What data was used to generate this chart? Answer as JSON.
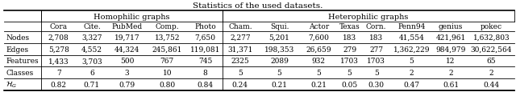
{
  "title": "Statistics of the used datasets.",
  "all_cols": [
    "Cora",
    "Cite.",
    "PubMed",
    "Comp.",
    "Photo",
    "Cham.",
    "Squi.",
    "Actor",
    "Texas",
    "Corn.",
    "Penn94",
    "genius",
    "pokec"
  ],
  "homophilic_count": 5,
  "heterophilic_count": 8,
  "row_labels": [
    "Nodes",
    "Edges",
    "Features",
    "Classes",
    "$\\mathcal{H}_G$"
  ],
  "row_keys": [
    "Nodes",
    "Edges",
    "Features",
    "Classes",
    "H_G"
  ],
  "data": {
    "Nodes": [
      "2,708",
      "3,327",
      "19,717",
      "13,752",
      "7,650",
      "2,277",
      "5,201",
      "7,600",
      "183",
      "183",
      "41,554",
      "421,961",
      "1,632,803"
    ],
    "Edges": [
      "5,278",
      "4,552",
      "44,324",
      "245,861",
      "119,081",
      "31,371",
      "198,353",
      "26,659",
      "279",
      "277",
      "1,362,229",
      "984,979",
      "30,622,564"
    ],
    "Features": [
      "1,433",
      "3,703",
      "500",
      "767",
      "745",
      "2325",
      "2089",
      "932",
      "1703",
      "1703",
      "5",
      "12",
      "65"
    ],
    "Classes": [
      "7",
      "6",
      "3",
      "10",
      "8",
      "5",
      "5",
      "5",
      "5",
      "5",
      "2",
      "2",
      "2"
    ],
    "H_G": [
      "0.82",
      "0.71",
      "0.79",
      "0.80",
      "0.84",
      "0.24",
      "0.21",
      "0.21",
      "0.05",
      "0.30",
      "0.47",
      "0.61",
      "0.44"
    ]
  },
  "fontsize_title": 7.5,
  "fontsize_header": 7.0,
  "fontsize_data": 6.5,
  "figsize": [
    6.4,
    1.16
  ],
  "dpi": 100
}
